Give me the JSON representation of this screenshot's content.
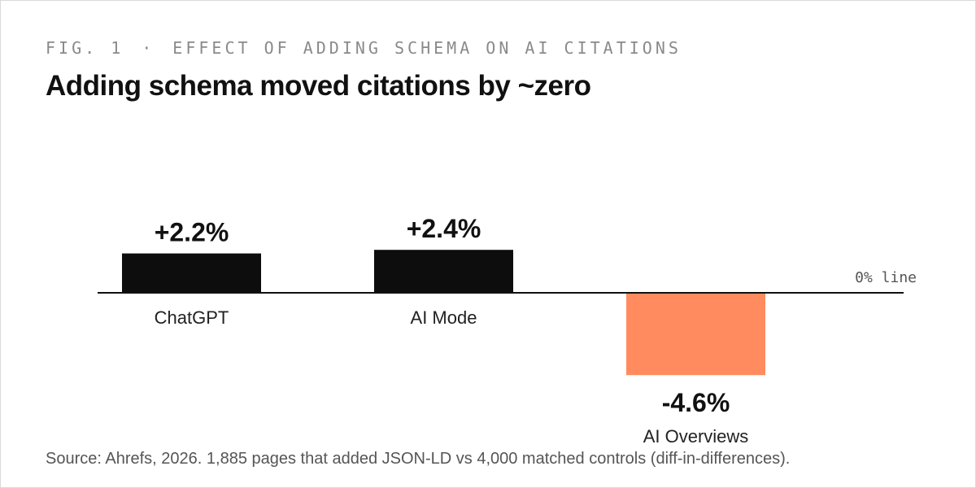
{
  "header": {
    "fig_label": "FIG. 1",
    "separator": "·",
    "eyebrow": "EFFECT OF ADDING SCHEMA ON AI CITATIONS",
    "title": "Adding schema moved citations by ~zero"
  },
  "footer": {
    "source": "Source: Ahrefs, 2026. 1,885 pages that added JSON-LD vs 4,000 matched controls (diff-in-differences)."
  },
  "chart_data": {
    "type": "bar",
    "title": "Adding schema moved citations by ~zero",
    "xlabel": "",
    "ylabel": "",
    "categories": [
      "ChatGPT",
      "AI Mode",
      "AI Overviews"
    ],
    "values": [
      2.2,
      2.4,
      -4.6
    ],
    "value_labels": [
      "+2.2%",
      "+2.4%",
      "-4.6%"
    ],
    "unit": "%",
    "zero_line_label": "0% line",
    "colors": {
      "positive": "#0d0d0d",
      "negative": "#ff8b5e",
      "axis": "#111111"
    },
    "grid": false,
    "legend": "none"
  }
}
